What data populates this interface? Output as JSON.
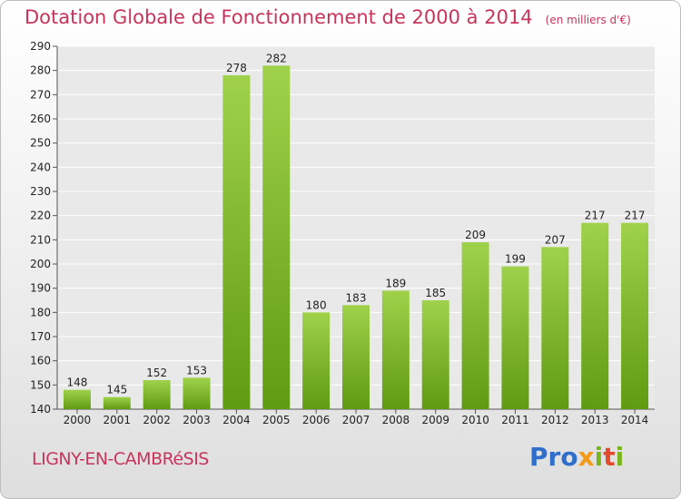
{
  "chart_data": {
    "type": "bar",
    "title": "Dotation Globale de Fonctionnement de 2000 à 2014",
    "unit_label": "(en milliers d'€)",
    "categories": [
      "2000",
      "2001",
      "2002",
      "2003",
      "2004",
      "2005",
      "2006",
      "2007",
      "2008",
      "2009",
      "2010",
      "2011",
      "2012",
      "2013",
      "2014"
    ],
    "values": [
      148,
      145,
      152,
      153,
      278,
      282,
      180,
      183,
      189,
      185,
      209,
      199,
      207,
      217,
      217
    ],
    "ylim": [
      140,
      290
    ],
    "yticks": [
      140,
      150,
      160,
      170,
      180,
      190,
      200,
      210,
      220,
      230,
      240,
      250,
      260,
      270,
      280,
      290
    ],
    "grid": true,
    "bar_color_top": "#9fd24a",
    "bar_color_bottom": "#5f9b12"
  },
  "commune": "LIGNY-EN-CAMBRéSIS",
  "brand": {
    "p1": "Pro",
    "p2": "x",
    "p3": "i",
    "p4": "t",
    "p5": "i"
  }
}
